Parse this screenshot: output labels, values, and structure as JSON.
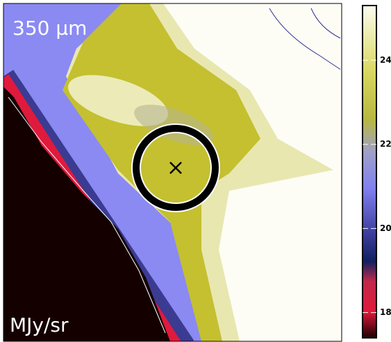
{
  "chart_data": {
    "type": "heatmap",
    "wavelength_label": "350 μm",
    "colorbar": {
      "label": "MJy/sr",
      "ylim": [
        17.4,
        25.3
      ],
      "yticks": [
        18,
        20,
        22,
        24
      ]
    }
  }
}
